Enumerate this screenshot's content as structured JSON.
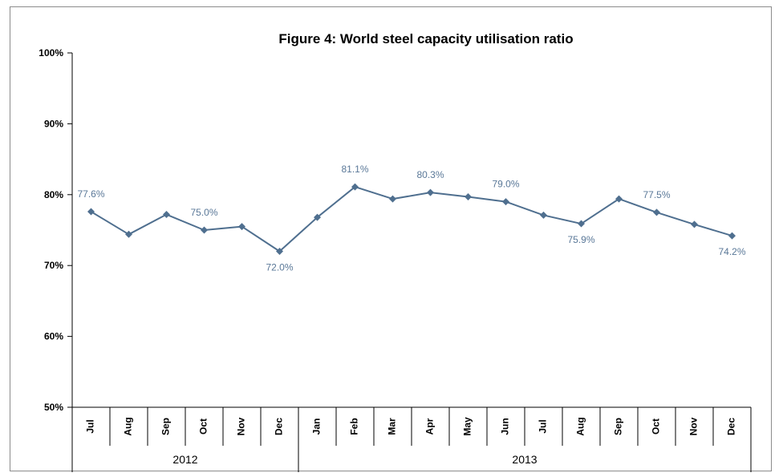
{
  "chart_data": {
    "type": "line",
    "title": "Figure 4: World steel capacity utilisation ratio",
    "xlabel": "",
    "ylabel": "",
    "ylim": [
      50,
      100
    ],
    "yticks": [
      "50%",
      "60%",
      "70%",
      "80%",
      "90%",
      "100%"
    ],
    "ytick_values": [
      50,
      60,
      70,
      80,
      90,
      100
    ],
    "grid": false,
    "categories": [
      "Jul",
      "Aug",
      "Sep",
      "Oct",
      "Nov",
      "Dec",
      "Jan",
      "Feb",
      "Mar",
      "Apr",
      "May",
      "Jun",
      "Jul",
      "Aug",
      "Sep",
      "Oct",
      "Nov",
      "Dec"
    ],
    "groups": [
      {
        "label": "2012",
        "count": 6
      },
      {
        "label": "2013",
        "count": 12
      }
    ],
    "series": [
      {
        "values": [
          77.6,
          74.4,
          77.2,
          75.0,
          75.5,
          72.0,
          76.8,
          81.1,
          79.4,
          80.3,
          79.7,
          79.0,
          77.1,
          75.9,
          79.4,
          77.5,
          75.8,
          74.2
        ]
      }
    ],
    "data_labels": [
      {
        "index": 0,
        "text": "77.6%",
        "pos": "above"
      },
      {
        "index": 3,
        "text": "75.0%",
        "pos": "above"
      },
      {
        "index": 5,
        "text": "72.0%",
        "pos": "below"
      },
      {
        "index": 7,
        "text": "81.1%",
        "pos": "above"
      },
      {
        "index": 9,
        "text": "80.3%",
        "pos": "above"
      },
      {
        "index": 11,
        "text": "79.0%",
        "pos": "above"
      },
      {
        "index": 13,
        "text": "75.9%",
        "pos": "below"
      },
      {
        "index": 15,
        "text": "77.5%",
        "pos": "above"
      },
      {
        "index": 17,
        "text": "74.2%",
        "pos": "below"
      }
    ],
    "colors": {
      "line": "#4f6f8f",
      "marker": "#4f6f8f",
      "label": "#5a7898",
      "axis": "#000000"
    }
  }
}
